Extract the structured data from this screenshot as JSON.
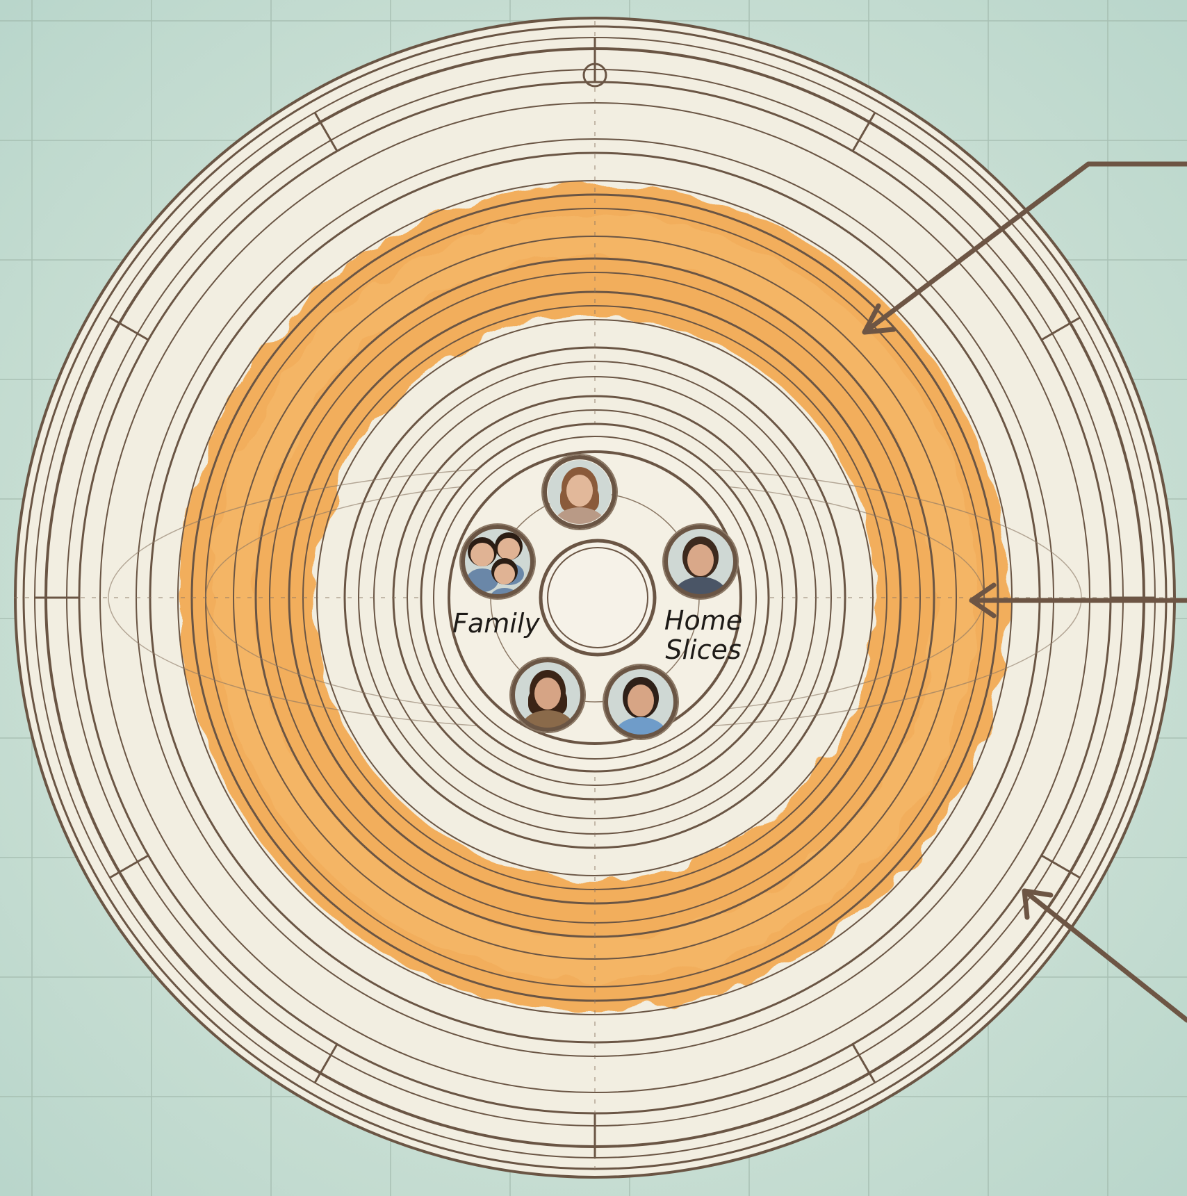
{
  "labels": {
    "left": "Family",
    "right_line1": "Home",
    "right_line2": "Slices"
  },
  "people": [
    {
      "name": "avatar-top-woman",
      "icon": "woman-portrait",
      "skin": "#e2b89a",
      "hair": "#8a5a3a",
      "shirt": "#b99a86"
    },
    {
      "name": "avatar-right-man",
      "icon": "man-portrait",
      "skin": "#d9a889",
      "hair": "#3d2a1e",
      "shirt": "#4a5566"
    },
    {
      "name": "avatar-bottom-right-man",
      "icon": "man-portrait",
      "skin": "#d7a585",
      "hair": "#2e2018",
      "shirt": "#6f9cc9"
    },
    {
      "name": "avatar-bottom-left-woman",
      "icon": "woman-portrait",
      "skin": "#d6a485",
      "hair": "#3b2416",
      "shirt": "#8a6a4a"
    },
    {
      "name": "avatar-left-family",
      "icon": "family-portrait",
      "skin": "#e0b394",
      "hair": "#2b1d14",
      "shirt": "#6a87a8"
    }
  ],
  "colors": {
    "background": "#cfe3d6",
    "paper": "#f2eee1",
    "ink": "#6a5544",
    "highlight": "#f2a444"
  }
}
